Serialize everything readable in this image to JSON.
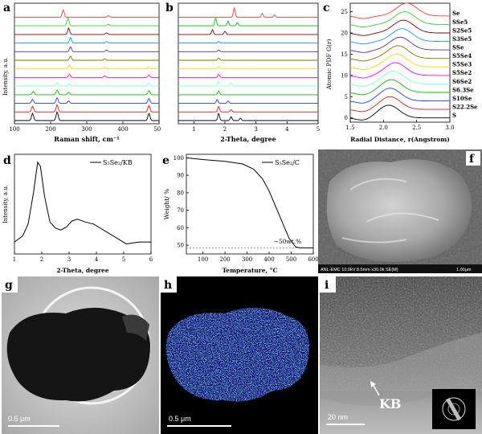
{
  "chart_data": [
    {
      "panel": "a",
      "type": "line",
      "xlabel": "Raman shift, cm⁻¹",
      "ylabel": "Intensity, a.u.",
      "xlim": [
        100,
        500
      ],
      "xticks": [
        "100",
        "200",
        "300",
        "400",
        "500"
      ],
      "series": [
        {
          "color": "#000000",
          "peaks": [
            [
              150,
              9
            ],
            [
              218,
              11
            ],
            [
              472,
              9
            ]
          ]
        },
        {
          "color": "#e31a1c",
          "peaks": [
            [
              150,
              7
            ],
            [
              218,
              9
            ],
            [
              472,
              8
            ]
          ]
        },
        {
          "color": "#1f3dff",
          "peaks": [
            [
              150,
              5
            ],
            [
              218,
              7
            ],
            [
              472,
              6
            ],
            [
              250,
              3
            ]
          ]
        },
        {
          "color": "#00c000",
          "peaks": [
            [
              152,
              4
            ],
            [
              218,
              6
            ],
            [
              472,
              5
            ],
            [
              250,
              3
            ]
          ]
        },
        {
          "color": "#7fffd4",
          "peaks": [
            [
              218,
              4
            ],
            [
              252,
              3
            ],
            [
              472,
              4
            ]
          ]
        },
        {
          "color": "#ff00ff",
          "peaks": [
            [
              252,
              4
            ],
            [
              350,
              2
            ],
            [
              472,
              3
            ]
          ]
        },
        {
          "color": "#ffd700",
          "peaks": [
            [
              252,
              5
            ],
            [
              350,
              2
            ],
            [
              470,
              2
            ]
          ]
        },
        {
          "color": "#8a6d00",
          "peaks": [
            [
              255,
              5
            ],
            [
              350,
              2
            ]
          ]
        },
        {
          "color": "#5a2b8a",
          "peaks": [
            [
              255,
              6
            ],
            [
              355,
              2
            ]
          ]
        },
        {
          "color": "#1e90ff",
          "peaks": [
            [
              255,
              7
            ],
            [
              355,
              2
            ]
          ]
        },
        {
          "color": "#800000",
          "peaks": [
            [
              250,
              8
            ],
            [
              355,
              2
            ]
          ]
        },
        {
          "color": "#33cc33",
          "peaks": [
            [
              248,
              10
            ],
            [
              360,
              2
            ]
          ]
        },
        {
          "color": "#ff3b3b",
          "peaks": [
            [
              235,
              9
            ],
            [
              360,
              2
            ]
          ]
        }
      ]
    },
    {
      "panel": "b",
      "type": "line",
      "xlabel": "2-Theta, degree",
      "xlim": [
        0.5,
        5
      ],
      "xticks": [
        "1",
        "2",
        "3",
        "4",
        "5"
      ],
      "series": [
        {
          "color": "#000000",
          "peaks": [
            [
              1.8,
              9
            ],
            [
              2.2,
              5
            ],
            [
              2.5,
              3
            ]
          ]
        },
        {
          "color": "#e31a1c",
          "peaks": [
            [
              1.8,
              7
            ],
            [
              2.2,
              3
            ]
          ]
        },
        {
          "color": "#1f3dff",
          "peaks": [
            [
              1.75,
              5
            ],
            [
              2.1,
              3
            ]
          ]
        },
        {
          "color": "#00c000",
          "peaks": [
            [
              1.8,
              5
            ]
          ]
        },
        {
          "color": "#7fffd4",
          "peaks": [
            [
              1.8,
              6
            ],
            [
              2.2,
              4
            ]
          ]
        },
        {
          "color": "#ff00ff",
          "peaks": [
            [
              1.8,
              4
            ]
          ]
        },
        {
          "color": "#ffd700",
          "peaks": [
            [
              1.8,
              3
            ]
          ]
        },
        {
          "color": "#8a6d00",
          "peaks": [
            [
              1.8,
              3
            ]
          ]
        },
        {
          "color": "#5a2b8a",
          "peaks": [
            [
              1.8,
              2
            ]
          ]
        },
        {
          "color": "#1e90ff",
          "peaks": [
            [
              1.8,
              2
            ]
          ]
        },
        {
          "color": "#800000",
          "peaks": [
            [
              1.6,
              6
            ],
            [
              2.0,
              4
            ]
          ]
        },
        {
          "color": "#00c000",
          "peaks": [
            [
              1.7,
              10
            ],
            [
              2.1,
              6
            ],
            [
              2.4,
              4
            ]
          ]
        },
        {
          "color": "#ff3b3b",
          "peaks": [
            [
              2.3,
              12
            ],
            [
              3.2,
              5
            ],
            [
              3.6,
              3
            ]
          ]
        }
      ]
    },
    {
      "panel": "c",
      "type": "line",
      "xlabel": "Radial Distance, r(Angstrom)",
      "ylabel": "Atomic PDF G(r)",
      "xlim": [
        1.5,
        3.0
      ],
      "ylim": [
        -1,
        27
      ],
      "xticks": [
        "1.5",
        "2.0",
        "2.5",
        "3.0"
      ],
      "yticks": [
        "0",
        "5",
        "10",
        "15",
        "20",
        "25"
      ],
      "series": [
        {
          "name": "S",
          "color": "#000000",
          "offset": 0,
          "center": 2.08
        },
        {
          "name": "S22.2Se",
          "color": "#e31a1c",
          "offset": 2,
          "center": 2.1
        },
        {
          "name": "S10Se",
          "color": "#1f3dff",
          "offset": 4,
          "center": 2.1
        },
        {
          "name": "S6.3Se",
          "color": "#00c000",
          "offset": 6,
          "center": 2.12
        },
        {
          "name": "S6Se2",
          "color": "#7fffd4",
          "offset": 8,
          "center": 2.15
        },
        {
          "name": "S5Se2",
          "color": "#ff00ff",
          "offset": 10,
          "center": 2.18
        },
        {
          "name": "S5Se3",
          "color": "#ffd700",
          "offset": 12,
          "center": 2.2
        },
        {
          "name": "S5Se4",
          "color": "#8a6d00",
          "offset": 14,
          "center": 2.22
        },
        {
          "name": "SSe",
          "color": "#5a2b8a",
          "offset": 16,
          "center": 2.25
        },
        {
          "name": "S3Se5",
          "color": "#1e90ff",
          "offset": 18,
          "center": 2.28
        },
        {
          "name": "S2Se5",
          "color": "#800000",
          "offset": 20,
          "center": 2.3
        },
        {
          "name": "SSe5",
          "color": "#33cc33",
          "offset": 22,
          "center": 2.32
        },
        {
          "name": "Se",
          "color": "#ff3b3b",
          "offset": 24,
          "center": 2.35
        }
      ]
    },
    {
      "panel": "d",
      "type": "line",
      "legend": "S₅Se₂/KB",
      "xlabel": "2-Theta, degree",
      "ylabel": "Intensity, a.u.",
      "xlim": [
        1,
        6
      ],
      "xticks": [
        "1",
        "2",
        "3",
        "4",
        "5",
        "6"
      ],
      "x": [
        1.0,
        1.3,
        1.5,
        1.7,
        1.85,
        1.95,
        2.1,
        2.3,
        2.5,
        2.7,
        2.9,
        3.1,
        3.3,
        3.6,
        3.9,
        4.2,
        4.5,
        4.8,
        5.1,
        5.3,
        5.6,
        6.0
      ],
      "y": [
        0.12,
        0.18,
        0.3,
        0.62,
        0.92,
        0.88,
        0.58,
        0.32,
        0.26,
        0.24,
        0.27,
        0.33,
        0.35,
        0.32,
        0.3,
        0.25,
        0.2,
        0.15,
        0.1,
        0.11,
        0.12,
        0.12
      ]
    },
    {
      "panel": "e",
      "type": "line",
      "legend": "S₅Se₂/C",
      "xlabel": "Temperature, °C",
      "ylabel": "Weight/ %",
      "xlim": [
        25,
        600
      ],
      "ylim": [
        45,
        102
      ],
      "xticks": [
        "100",
        "200",
        "300",
        "400",
        "500",
        "600"
      ],
      "yticks": [
        "50",
        "60",
        "70",
        "80",
        "90",
        "100"
      ],
      "annotation": "~50wt.%",
      "x": [
        25,
        100,
        200,
        280,
        330,
        370,
        400,
        430,
        460,
        490,
        520,
        540,
        600
      ],
      "y": [
        100,
        99,
        98,
        96.5,
        93.5,
        88,
        81,
        72,
        63,
        54,
        49,
        48.5,
        48.5
      ]
    }
  ],
  "images": {
    "f": {
      "label": "f",
      "caption": "ANL-EMC 10.0kV 8.5mm x30.0k SE(M)",
      "scale": "1.00μm"
    },
    "g": {
      "label": "g",
      "scale": "0.5 μm"
    },
    "h": {
      "label": "h",
      "scale": "0.5 μm"
    },
    "i": {
      "label": "i",
      "scale": "20 nm",
      "callout": "KB"
    }
  },
  "colors": {
    "dash": "#888888"
  }
}
